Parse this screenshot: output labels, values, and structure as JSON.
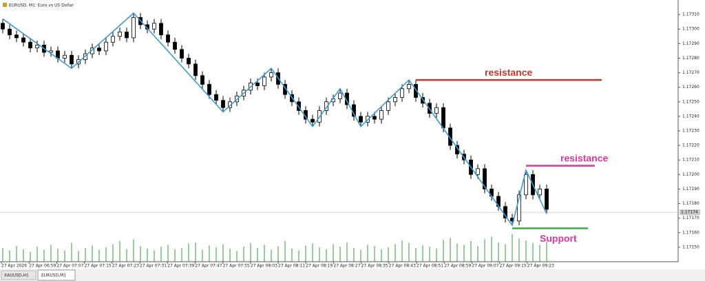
{
  "chart_data": {
    "type": "candlestick",
    "title": "EURUSD, M1: Euro vs US Dollar",
    "tabs": [
      "XAUUSD,H1",
      "EURUSD,M1"
    ],
    "x_labels": [
      "27 Apr 2026",
      "27 Apr 06:59",
      "27 Apr 07:07",
      "27 Apr 07:15",
      "27 Apr 07:23",
      "27 Apr 07:31",
      "27 Apr 07:39",
      "27 Apr 07:47",
      "27 Apr 07:55",
      "27 Apr 08:03",
      "27 Apr 08:11",
      "27 Apr 08:19",
      "27 Apr 08:27",
      "27 Apr 08:35",
      "27 Apr 08:43",
      "27 Apr 08:51",
      "27 Apr 08:59",
      "27 Apr 09:07",
      "27 Apr 09:15",
      "27 Apr 09:23"
    ],
    "open": [
      1.17304,
      1.173,
      1.17296,
      1.17294,
      1.17291,
      1.17287,
      1.17289,
      1.17284,
      1.17285,
      1.1728,
      1.17282,
      1.17276,
      1.17279,
      1.17283,
      1.17287,
      1.17285,
      1.17291,
      1.17295,
      1.17298,
      1.17294,
      1.17308,
      1.17303,
      1.173,
      1.17304,
      1.17296,
      1.17291,
      1.17286,
      1.1728,
      1.17276,
      1.17268,
      1.17262,
      1.17255,
      1.17251,
      1.17246,
      1.1725,
      1.17254,
      1.17258,
      1.17263,
      1.17261,
      1.17267,
      1.1727,
      1.17262,
      1.17255,
      1.1725,
      1.17244,
      1.17238,
      1.17236,
      1.17244,
      1.1725,
      1.17252,
      1.17256,
      1.17248,
      1.1724,
      1.17236,
      1.1724,
      1.17238,
      1.17244,
      1.1725,
      1.17253,
      1.17259,
      1.17262,
      1.17253,
      1.17249,
      1.17242,
      1.17246,
      1.17232,
      1.1722,
      1.17214,
      1.1721,
      1.172,
      1.17204,
      1.1719,
      1.17185,
      1.17178,
      1.1717,
      1.17168,
      1.17186,
      1.172,
      1.17186,
      1.1719
    ],
    "high": [
      1.17307,
      1.17303,
      1.17299,
      1.17297,
      1.17294,
      1.17292,
      1.17292,
      1.17288,
      1.17288,
      1.17285,
      1.17285,
      1.17282,
      1.17286,
      1.1729,
      1.1729,
      1.17294,
      1.17298,
      1.17301,
      1.17301,
      1.17311,
      1.17311,
      1.17306,
      1.17307,
      1.17307,
      1.17299,
      1.17294,
      1.17289,
      1.17283,
      1.17279,
      1.17271,
      1.17265,
      1.17258,
      1.17254,
      1.17253,
      1.17257,
      1.17261,
      1.17266,
      1.17266,
      1.1727,
      1.17273,
      1.17273,
      1.17265,
      1.17258,
      1.17253,
      1.17247,
      1.17241,
      1.17247,
      1.17253,
      1.17255,
      1.17259,
      1.17259,
      1.17251,
      1.17243,
      1.17243,
      1.17243,
      1.17247,
      1.17253,
      1.17256,
      1.17262,
      1.17265,
      1.17265,
      1.17256,
      1.17252,
      1.17249,
      1.17249,
      1.17235,
      1.17223,
      1.17217,
      1.17213,
      1.17207,
      1.17207,
      1.17193,
      1.17188,
      1.17181,
      1.17173,
      1.17189,
      1.17203,
      1.17203,
      1.17193,
      1.17193
    ],
    "low": [
      1.17297,
      1.17293,
      1.17291,
      1.17288,
      1.17284,
      1.17284,
      1.17281,
      1.17281,
      1.17277,
      1.17277,
      1.17273,
      1.17273,
      1.17276,
      1.1728,
      1.17282,
      1.17282,
      1.17288,
      1.17292,
      1.17291,
      1.17291,
      1.173,
      1.17297,
      1.17297,
      1.17293,
      1.17288,
      1.17283,
      1.17277,
      1.17273,
      1.17265,
      1.17259,
      1.17252,
      1.17248,
      1.17243,
      1.17243,
      1.17247,
      1.17251,
      1.17255,
      1.17258,
      1.17258,
      1.17264,
      1.17259,
      1.17252,
      1.17247,
      1.17241,
      1.17235,
      1.17233,
      1.17233,
      1.17241,
      1.17247,
      1.17249,
      1.17245,
      1.17237,
      1.17233,
      1.17233,
      1.17235,
      1.17235,
      1.17241,
      1.17247,
      1.1725,
      1.17256,
      1.1725,
      1.17246,
      1.17239,
      1.17239,
      1.17229,
      1.17217,
      1.17211,
      1.17207,
      1.17197,
      1.17197,
      1.17187,
      1.17182,
      1.17175,
      1.17167,
      1.17165,
      1.17165,
      1.17183,
      1.17183,
      1.17183,
      1.17173
    ],
    "close": [
      1.173,
      1.17296,
      1.17294,
      1.17291,
      1.17287,
      1.17289,
      1.17284,
      1.17285,
      1.1728,
      1.17282,
      1.17276,
      1.17279,
      1.17283,
      1.17287,
      1.17285,
      1.17291,
      1.17295,
      1.17298,
      1.17294,
      1.17308,
      1.17303,
      1.173,
      1.17304,
      1.17296,
      1.17291,
      1.17286,
      1.1728,
      1.17276,
      1.17268,
      1.17262,
      1.17255,
      1.17251,
      1.17246,
      1.1725,
      1.17254,
      1.17258,
      1.17263,
      1.17261,
      1.17267,
      1.1727,
      1.17262,
      1.17255,
      1.1725,
      1.17244,
      1.17238,
      1.17236,
      1.17244,
      1.1725,
      1.17252,
      1.17256,
      1.17248,
      1.1724,
      1.17236,
      1.1724,
      1.17238,
      1.17244,
      1.1725,
      1.17253,
      1.17259,
      1.17262,
      1.17253,
      1.17249,
      1.17242,
      1.17246,
      1.17232,
      1.1722,
      1.17214,
      1.1721,
      1.172,
      1.17204,
      1.1719,
      1.17185,
      1.17178,
      1.1717,
      1.17168,
      1.17186,
      1.172,
      1.17186,
      1.1719,
      1.17176
    ],
    "volume": [
      22,
      18,
      25,
      20,
      16,
      24,
      19,
      27,
      21,
      18,
      30,
      17,
      22,
      26,
      19,
      23,
      28,
      33,
      20,
      36,
      25,
      21,
      18,
      24,
      27,
      20,
      22,
      29,
      31,
      19,
      26,
      23,
      28,
      21,
      17,
      24,
      30,
      22,
      27,
      19,
      25,
      33,
      21,
      18,
      26,
      29,
      23,
      20,
      28,
      24,
      31,
      22,
      19,
      27,
      25,
      20,
      23,
      28,
      34,
      30,
      22,
      26,
      24,
      21,
      35,
      38,
      29,
      27,
      33,
      25,
      36,
      40,
      31,
      28,
      44,
      37,
      34,
      30,
      27,
      32
    ],
    "volume_color": "#2ca02c",
    "zigzag": {
      "color": "#3a9ad9",
      "index": [
        0,
        10,
        19,
        32,
        39,
        45,
        49,
        52,
        59,
        74,
        76,
        79
      ],
      "price": [
        1.17307,
        1.17273,
        1.17311,
        1.17243,
        1.17273,
        1.17233,
        1.17259,
        1.17233,
        1.17265,
        1.17165,
        1.17203,
        1.17173
      ]
    },
    "levels": [
      {
        "label": "resistance",
        "color": "#c0392b",
        "price": 1.17265,
        "x_index": [
          60,
          87
        ]
      },
      {
        "label": "resistance",
        "color": "#e0359d",
        "price": 1.17206,
        "x_index": [
          76,
          86
        ]
      },
      {
        "label": "Support",
        "color": "#e0359d",
        "line_color": "#3cb043",
        "price": 1.17163,
        "x_index": [
          74,
          85
        ]
      }
    ],
    "current_price": {
      "value": 1.17174,
      "label": "1.17174"
    },
    "ylim": [
      1.1714,
      1.1732
    ],
    "yticks": [
      {
        "value": 1.1731,
        "label": "1.17310"
      },
      {
        "value": 1.173,
        "label": "1.17300"
      },
      {
        "value": 1.1729,
        "label": "1.17290"
      },
      {
        "value": 1.1728,
        "label": "1.17280"
      },
      {
        "value": 1.1727,
        "label": "1.17270"
      },
      {
        "value": 1.1726,
        "label": "1.17260"
      },
      {
        "value": 1.1725,
        "label": "1.17250"
      },
      {
        "value": 1.1724,
        "label": "1.17240"
      },
      {
        "value": 1.1723,
        "label": "1.17230"
      },
      {
        "value": 1.1722,
        "label": "1.17220"
      },
      {
        "value": 1.1721,
        "label": "1.17210"
      },
      {
        "value": 1.172,
        "label": "1.17200"
      },
      {
        "value": 1.1719,
        "label": "1.17190"
      },
      {
        "value": 1.1718,
        "label": "1.17180"
      },
      {
        "value": 1.1717,
        "label": "1.17170"
      },
      {
        "value": 1.1716,
        "label": "1.17160"
      },
      {
        "value": 1.1715,
        "label": "1.17150"
      }
    ]
  }
}
